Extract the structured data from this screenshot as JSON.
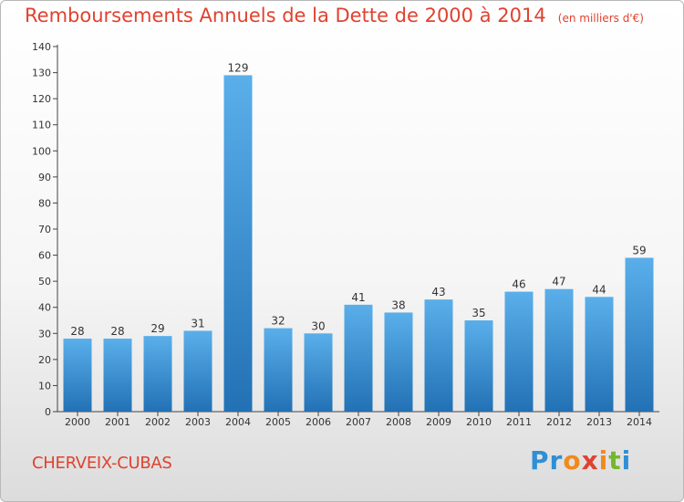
{
  "title": "Remboursements Annuels de la Dette de 2000 à 2014",
  "unit": "(en milliers d'€)",
  "commune": "CHERVEIX-CUBAS",
  "logo": {
    "letters": [
      "P",
      "r",
      "o",
      "x",
      "i",
      "t",
      "i"
    ],
    "colors": [
      "#2f8fd6",
      "#2f8fd6",
      "#f08a1c",
      "#e0422f",
      "#f08a1c",
      "#74b72e",
      "#2f8fd6"
    ]
  },
  "chart_data": {
    "type": "bar",
    "title": "Remboursements Annuels de la Dette de 2000 à 2014",
    "subtitle": "(en milliers d'€)",
    "xlabel": "",
    "ylabel": "",
    "categories": [
      "2000",
      "2001",
      "2002",
      "2003",
      "2004",
      "2005",
      "2006",
      "2007",
      "2008",
      "2009",
      "2010",
      "2011",
      "2012",
      "2013",
      "2014"
    ],
    "values": [
      28,
      28,
      29,
      31,
      129,
      32,
      30,
      41,
      38,
      43,
      35,
      46,
      47,
      44,
      59
    ],
    "ylim": [
      0,
      140
    ],
    "yticks": [
      0,
      10,
      20,
      30,
      40,
      50,
      60,
      70,
      80,
      90,
      100,
      110,
      120,
      130,
      140
    ],
    "grid": false,
    "legend": "none",
    "bar_color_top": "#5aafea",
    "bar_color_bottom": "#2271b5"
  }
}
